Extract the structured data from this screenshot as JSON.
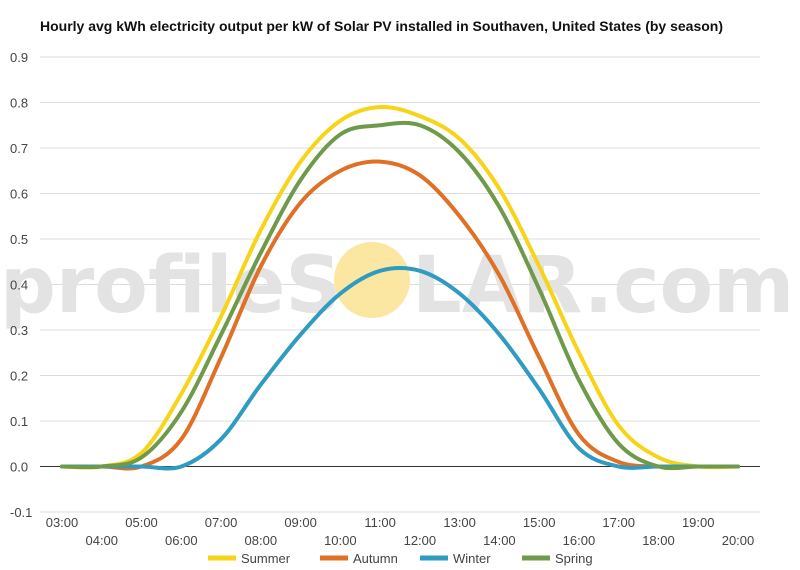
{
  "watermark": {
    "left": "profileS",
    "right": "LAR.com",
    "sun_color": "#fbe7a1"
  },
  "chart_data": {
    "type": "line",
    "title": "Hourly avg kWh electricity output per kW of Solar PV installed in Southaven, United States (by season)",
    "xlabel": "",
    "ylabel": "",
    "ylim": [
      -0.1,
      0.9
    ],
    "yticks": [
      -0.1,
      0.0,
      0.1,
      0.2,
      0.3,
      0.4,
      0.5,
      0.6,
      0.7,
      0.8,
      0.9
    ],
    "ytick_labels": [
      "-0.1",
      "0.0",
      "0.1",
      "0.2",
      "0.3",
      "0.4",
      "0.5",
      "0.6",
      "0.7",
      "0.8",
      "0.9"
    ],
    "xlim": [
      3,
      20
    ],
    "xticks": [
      3,
      4,
      5,
      6,
      7,
      8,
      9,
      10,
      11,
      12,
      13,
      14,
      15,
      16,
      17,
      18,
      19,
      20
    ],
    "xtick_labels": [
      "03:00",
      "04:00",
      "05:00",
      "06:00",
      "07:00",
      "08:00",
      "09:00",
      "10:00",
      "11:00",
      "12:00",
      "13:00",
      "14:00",
      "15:00",
      "16:00",
      "17:00",
      "18:00",
      "19:00",
      "20:00"
    ],
    "grid": true,
    "legend_position": "bottom",
    "x": [
      3,
      4,
      5,
      6,
      7,
      8,
      9,
      10,
      11,
      12,
      13,
      14,
      15,
      16,
      17,
      18,
      19,
      20
    ],
    "series": [
      {
        "name": "Summer",
        "color": "#f7d417",
        "values": [
          0.0,
          0.0,
          0.03,
          0.16,
          0.33,
          0.52,
          0.67,
          0.76,
          0.79,
          0.77,
          0.72,
          0.61,
          0.44,
          0.25,
          0.09,
          0.02,
          0.0,
          0.0
        ]
      },
      {
        "name": "Autumn",
        "color": "#e07025",
        "values": [
          0.0,
          0.0,
          0.0,
          0.06,
          0.24,
          0.44,
          0.58,
          0.65,
          0.67,
          0.64,
          0.55,
          0.42,
          0.24,
          0.07,
          0.01,
          0.0,
          0.0,
          0.0
        ]
      },
      {
        "name": "Winter",
        "color": "#2f9bc1",
        "values": [
          0.0,
          0.0,
          0.0,
          0.0,
          0.06,
          0.18,
          0.29,
          0.38,
          0.43,
          0.43,
          0.38,
          0.29,
          0.17,
          0.04,
          0.0,
          0.0,
          0.0,
          0.0
        ]
      },
      {
        "name": "Spring",
        "color": "#6e9a4a",
        "values": [
          0.0,
          0.0,
          0.02,
          0.12,
          0.29,
          0.47,
          0.63,
          0.73,
          0.75,
          0.75,
          0.69,
          0.57,
          0.39,
          0.19,
          0.05,
          0.0,
          0.0,
          0.0
        ]
      }
    ]
  }
}
